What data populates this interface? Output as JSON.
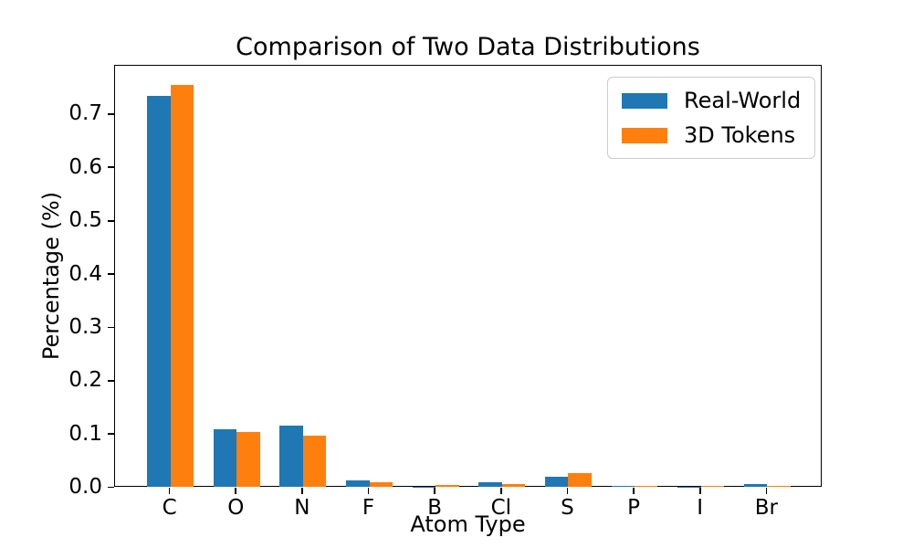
{
  "chart_data": {
    "type": "bar",
    "title": "Comparison of Two Data Distributions",
    "xlabel": "Atom Type",
    "ylabel": "Percentage (%)",
    "categories": [
      "C",
      "O",
      "N",
      "F",
      "B",
      "Cl",
      "S",
      "P",
      "I",
      "Br"
    ],
    "series": [
      {
        "name": "Real-World",
        "color": "#1f77b4",
        "values": [
          0.733,
          0.108,
          0.114,
          0.012,
          0.0005,
          0.009,
          0.018,
          0.001,
          0.0005,
          0.004
        ]
      },
      {
        "name": "3D Tokens",
        "color": "#ff7f0e",
        "values": [
          0.754,
          0.102,
          0.096,
          0.008,
          0.003,
          0.004,
          0.026,
          0.002,
          0.002,
          0.002
        ]
      }
    ],
    "ylim": [
      0,
      0.7925
    ],
    "yticks": [
      "0.0",
      "0.1",
      "0.2",
      "0.3",
      "0.4",
      "0.5",
      "0.6",
      "0.7"
    ],
    "bar_width_fraction": 0.35,
    "grid": false,
    "legend_position": "upper right",
    "background_color": "#ffffff",
    "text_color": "#000000"
  }
}
